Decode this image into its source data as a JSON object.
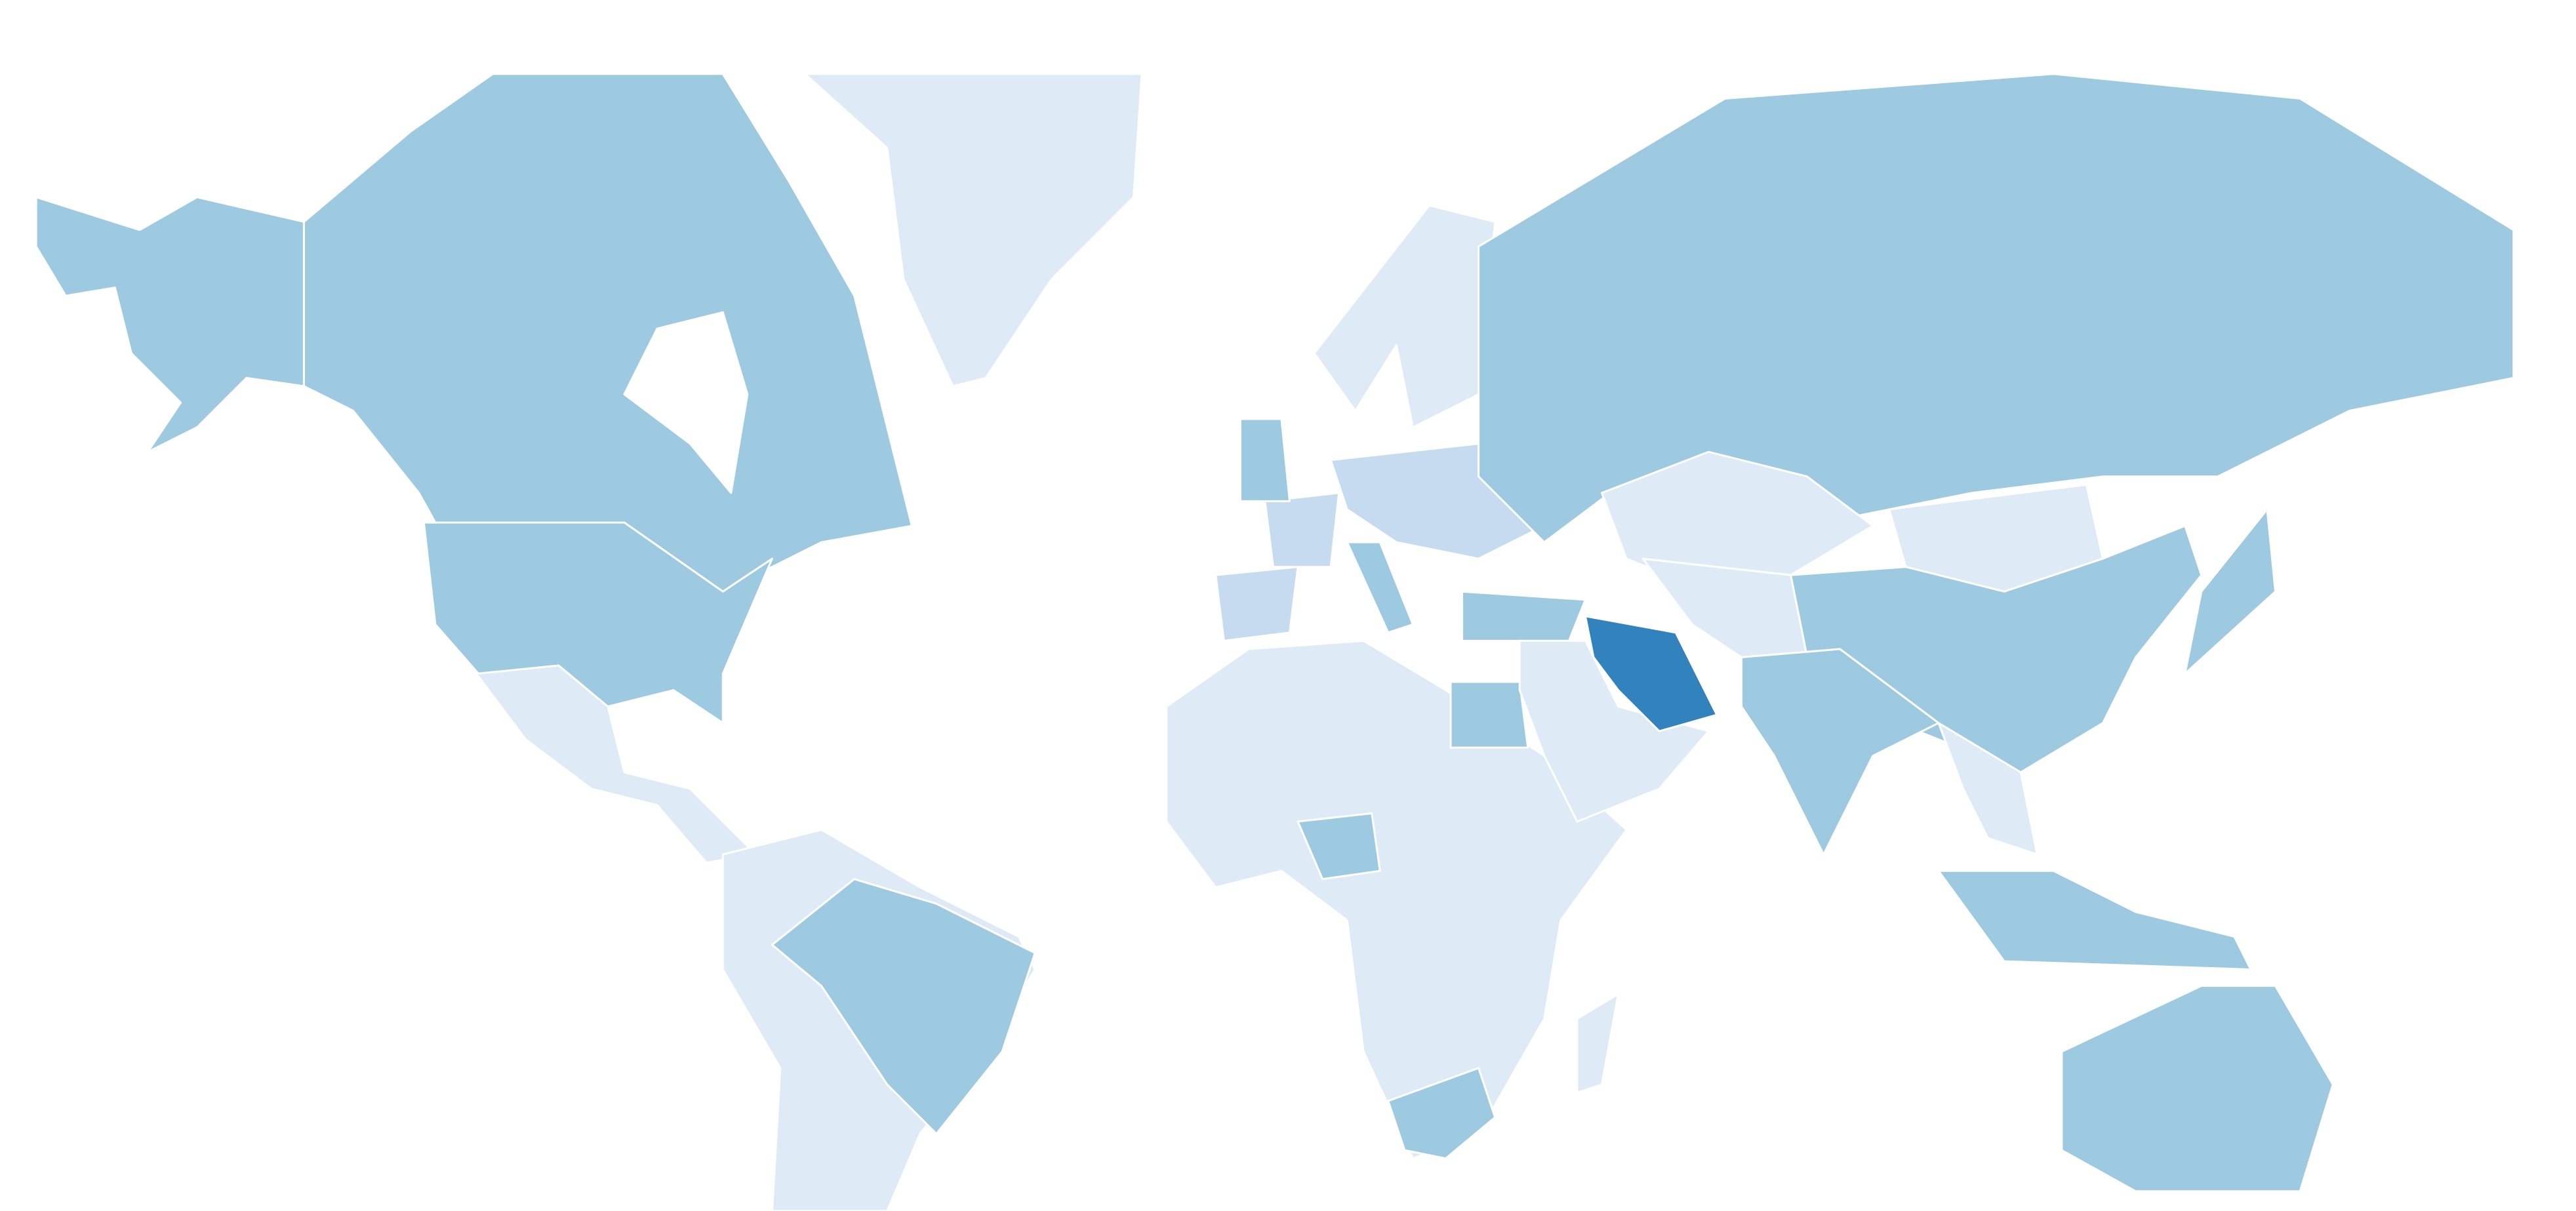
{
  "map": {
    "type": "choropleth",
    "projection": "mercator",
    "color_scale": {
      "1": "#deebf7",
      "2": "#c6dbef",
      "3": "#9ecae1",
      "4": "#3182bd"
    },
    "background": "#ffffff",
    "regions": [
      {
        "id": "alaska",
        "level": 3
      },
      {
        "id": "canada",
        "level": 3
      },
      {
        "id": "greenland",
        "level": 1
      },
      {
        "id": "usa",
        "level": 3
      },
      {
        "id": "mexico-central-america",
        "level": 1
      },
      {
        "id": "south-america",
        "level": 1
      },
      {
        "id": "brazil",
        "level": 3
      },
      {
        "id": "africa",
        "level": 1
      },
      {
        "id": "south-africa",
        "level": 3
      },
      {
        "id": "nigeria",
        "level": 3
      },
      {
        "id": "egypt",
        "level": 3
      },
      {
        "id": "madagascar",
        "level": 1
      },
      {
        "id": "spain",
        "level": 2
      },
      {
        "id": "france",
        "level": 2
      },
      {
        "id": "united-kingdom",
        "level": 3
      },
      {
        "id": "italy",
        "level": 3
      },
      {
        "id": "scandinavia",
        "level": 1
      },
      {
        "id": "central-eastern-europe",
        "level": 2
      },
      {
        "id": "russia",
        "level": 3
      },
      {
        "id": "kazakhstan",
        "level": 1
      },
      {
        "id": "mongolia",
        "level": 1
      },
      {
        "id": "china",
        "level": 3
      },
      {
        "id": "central-asia",
        "level": 1
      },
      {
        "id": "turkey",
        "level": 3
      },
      {
        "id": "middle-east",
        "level": 1
      },
      {
        "id": "iran",
        "level": 4
      },
      {
        "id": "india",
        "level": 3
      },
      {
        "id": "southeast-asia",
        "level": 1
      },
      {
        "id": "indonesia",
        "level": 3
      },
      {
        "id": "japan",
        "level": 3
      },
      {
        "id": "australia",
        "level": 3
      }
    ]
  }
}
